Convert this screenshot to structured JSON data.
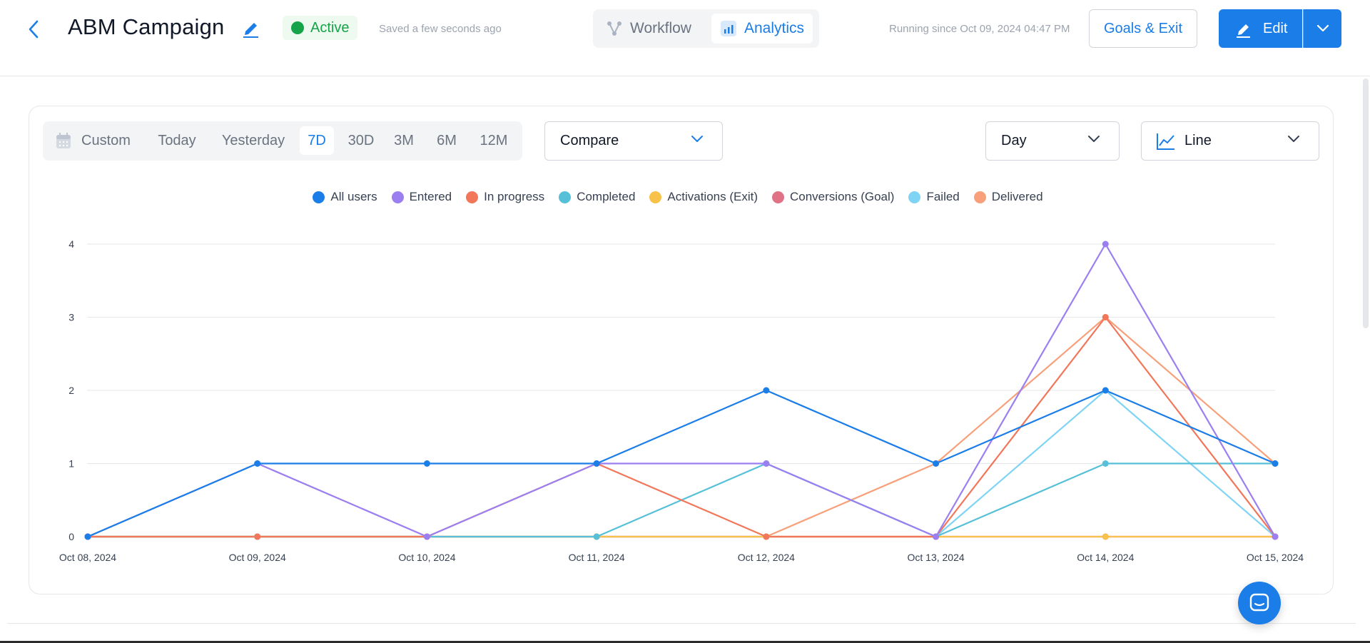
{
  "header": {
    "title": "ABM Campaign",
    "status": "Active",
    "saved": "Saved a few seconds ago",
    "tabs": [
      {
        "label": "Workflow",
        "icon": "workflow-icon"
      },
      {
        "label": "Analytics",
        "icon": "analytics-icon",
        "active": true
      }
    ],
    "running": "Running since Oct 09, 2024 04:47 PM",
    "goals_label": "Goals & Exit",
    "edit_label": "Edit"
  },
  "filters": {
    "ranges": [
      "Custom",
      "Today",
      "Yesterday",
      "7D",
      "30D",
      "3M",
      "6M",
      "12M"
    ],
    "active_range": "7D",
    "compare_label": "Compare",
    "granularity": "Day",
    "chart_type_label": "Line"
  },
  "colors": {
    "accent": "#1a7de8",
    "active_status": "#16a34a"
  },
  "chart_data": {
    "type": "line",
    "x": [
      "Oct 08, 2024",
      "Oct 09, 2024",
      "Oct 10, 2024",
      "Oct 11, 2024",
      "Oct 12, 2024",
      "Oct 13, 2024",
      "Oct 14, 2024",
      "Oct 15, 2024"
    ],
    "ylim": [
      0,
      4
    ],
    "yticks": [
      0,
      1,
      2,
      3,
      4
    ],
    "grid": true,
    "legend_position": "top-center",
    "series": [
      {
        "name": "All users",
        "color": "#1a7de8",
        "values": [
          0,
          1,
          1,
          1,
          2,
          1,
          2,
          1
        ]
      },
      {
        "name": "Entered",
        "color": "#9b7ff0",
        "values": [
          0,
          1,
          0,
          1,
          1,
          0,
          4,
          0
        ]
      },
      {
        "name": "In progress",
        "color": "#f2765a",
        "values": [
          0,
          0,
          0,
          1,
          0,
          0,
          3,
          0
        ]
      },
      {
        "name": "Completed",
        "color": "#55c0d8",
        "values": [
          0,
          0,
          0,
          0,
          1,
          0,
          1,
          1
        ]
      },
      {
        "name": "Activations (Exit)",
        "color": "#f8c14a",
        "values": [
          0,
          0,
          0,
          0,
          0,
          0,
          0,
          0
        ]
      },
      {
        "name": "Conversions (Goal)",
        "color": "#e07286",
        "values": [
          0,
          0,
          0,
          0,
          0,
          0,
          0,
          0
        ]
      },
      {
        "name": "Failed",
        "color": "#7fd4f5",
        "values": [
          0,
          0,
          0,
          0,
          0,
          0,
          2,
          0
        ]
      },
      {
        "name": "Delivered",
        "color": "#f7a07a",
        "values": [
          0,
          0,
          0,
          0,
          0,
          1,
          3,
          1
        ]
      }
    ]
  }
}
